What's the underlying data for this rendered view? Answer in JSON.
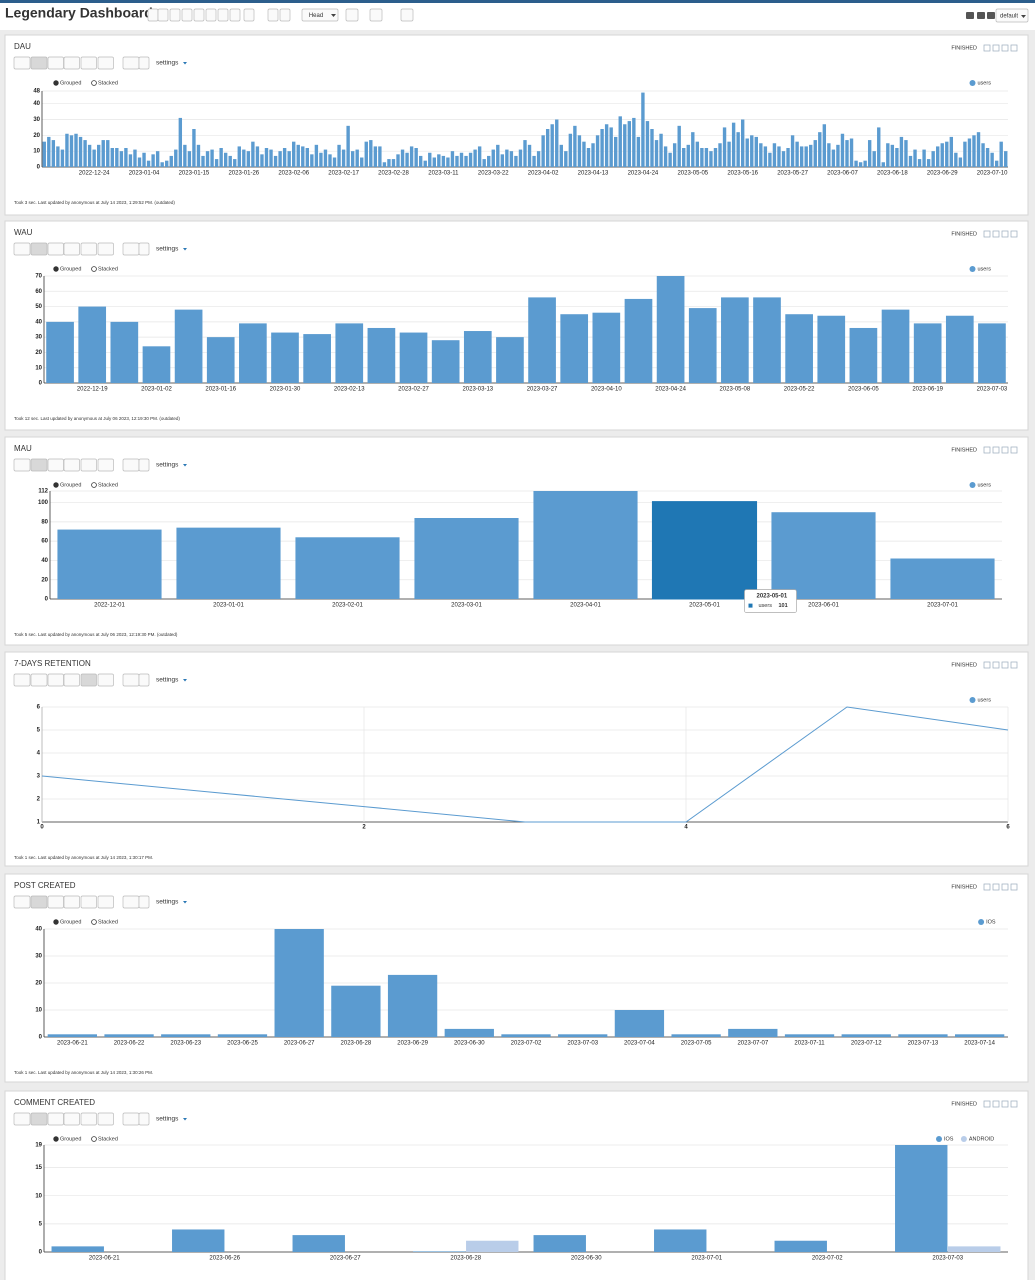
{
  "header": {
    "title": "Legendary Dashboard",
    "branch": "Head",
    "profile": "default"
  },
  "ui": {
    "status": "FINISHED",
    "settings": "settings",
    "grouped": "Grouped",
    "stacked": "Stacked"
  },
  "chart_data": [
    {
      "type": "bar",
      "title": "DAU",
      "footer": "Took 3 sec. Last updated by anonymous at July 14 2023, 1:29:52 PM. (outdated)",
      "categories": [
        null,
        null,
        null,
        null,
        null,
        null,
        null,
        null,
        null,
        null,
        null,
        "2022-12-24",
        null,
        null,
        null,
        null,
        null,
        null,
        null,
        null,
        null,
        null,
        "2023-01-04",
        null,
        null,
        null,
        null,
        null,
        null,
        null,
        null,
        null,
        null,
        "2023-01-15",
        null,
        null,
        null,
        null,
        null,
        null,
        null,
        null,
        null,
        null,
        "2023-01-26",
        null,
        null,
        null,
        null,
        null,
        null,
        null,
        null,
        null,
        null,
        "2023-02-06",
        null,
        null,
        null,
        null,
        null,
        null,
        null,
        null,
        null,
        null,
        "2023-02-17",
        null,
        null,
        null,
        null,
        null,
        null,
        null,
        null,
        null,
        null,
        "2023-02-28",
        null,
        null,
        null,
        null,
        null,
        null,
        null,
        null,
        null,
        null,
        "2023-03-11",
        null,
        null,
        null,
        null,
        null,
        null,
        null,
        null,
        null,
        null,
        "2023-03-22",
        null,
        null,
        null,
        null,
        null,
        null,
        null,
        null,
        null,
        null,
        "2023-04-02",
        null,
        null,
        null,
        null,
        null,
        null,
        null,
        null,
        null,
        null,
        "2023-04-13",
        null,
        null,
        null,
        null,
        null,
        null,
        null,
        null,
        null,
        null,
        "2023-04-24",
        null,
        null,
        null,
        null,
        null,
        null,
        null,
        null,
        null,
        null,
        "2023-05-05",
        null,
        null,
        null,
        null,
        null,
        null,
        null,
        null,
        null,
        null,
        "2023-05-16",
        null,
        null,
        null,
        null,
        null,
        null,
        null,
        null,
        null,
        null,
        "2023-05-27",
        null,
        null,
        null,
        null,
        null,
        null,
        null,
        null,
        null,
        null,
        "2023-06-07",
        null,
        null,
        null,
        null,
        null,
        null,
        null,
        null,
        null,
        null,
        "2023-06-18",
        null,
        null,
        null,
        null,
        null,
        null,
        null,
        null,
        null,
        null,
        "2023-06-29",
        null,
        null,
        null,
        null,
        null,
        null,
        null,
        null,
        null,
        null,
        "2023-07-10",
        null,
        null,
        null
      ],
      "series": [
        {
          "name": "users",
          "color": "#5b9bd0",
          "values": [
            16,
            19,
            17,
            13,
            11,
            21,
            20,
            21,
            19,
            17,
            14,
            11,
            14,
            17,
            17,
            12,
            12,
            10,
            12,
            8,
            11,
            6,
            9,
            4,
            8,
            10,
            3,
            4,
            7,
            11,
            31,
            14,
            10,
            24,
            14,
            7,
            10,
            11,
            5,
            12,
            9,
            7,
            5,
            13,
            11,
            10,
            16,
            13,
            8,
            12,
            11,
            7,
            10,
            12,
            10,
            16,
            14,
            13,
            12,
            8,
            14,
            9,
            11,
            8,
            6,
            14,
            11,
            26,
            10,
            11,
            6,
            16,
            17,
            13,
            13,
            3,
            5,
            5,
            8,
            11,
            9,
            13,
            12,
            7,
            4,
            9,
            6,
            8,
            7,
            6,
            10,
            7,
            9,
            7,
            9,
            11,
            13,
            5,
            7,
            11,
            14,
            8,
            11,
            10,
            7,
            11,
            17,
            14,
            7,
            10,
            20,
            24,
            27,
            30,
            14,
            10,
            21,
            26,
            20,
            16,
            12,
            15,
            20,
            24,
            27,
            25,
            19,
            32,
            27,
            29,
            31,
            19,
            47,
            29,
            24,
            17,
            21,
            13,
            9,
            15,
            26,
            12,
            14,
            22,
            16,
            12,
            12,
            10,
            12,
            15,
            25,
            16,
            28,
            22,
            30,
            18,
            20,
            19,
            15,
            13,
            9,
            15,
            13,
            10,
            12,
            20,
            16,
            13,
            13,
            14,
            17,
            22,
            27,
            15,
            11,
            14,
            21,
            17,
            18,
            4,
            3,
            4,
            17,
            10,
            25,
            3,
            15,
            14,
            12,
            19,
            17,
            7,
            11,
            5,
            11,
            5,
            10,
            13,
            15,
            16,
            19,
            9,
            6,
            16,
            18,
            20,
            22,
            15,
            12,
            9,
            4,
            16,
            10
          ]
        }
      ],
      "ylim": [
        0,
        48
      ],
      "yticks": [
        0,
        10,
        20,
        30,
        40,
        48
      ],
      "grid": true,
      "legend": "top-right"
    },
    {
      "type": "bar",
      "title": "WAU",
      "footer": "Took 12 sec. Last updated by anonymous at July 06 2023, 12:19:30 PM. (outdated)",
      "categories": [
        null,
        "2022-12-19",
        null,
        "2023-01-02",
        null,
        "2023-01-16",
        null,
        "2023-01-30",
        null,
        "2023-02-13",
        null,
        "2023-02-27",
        null,
        "2023-03-13",
        null,
        "2023-03-27",
        null,
        "2023-04-10",
        null,
        "2023-04-24",
        null,
        "2023-05-08",
        null,
        "2023-05-22",
        null,
        "2023-06-05",
        null,
        "2023-06-19",
        null,
        "2023-07-03"
      ],
      "series": [
        {
          "name": "users",
          "color": "#5b9bd0",
          "values": [
            40,
            50,
            40,
            24,
            48,
            30,
            39,
            33,
            32,
            39,
            36,
            33,
            28,
            34,
            30,
            56,
            45,
            46,
            55,
            70,
            49,
            56,
            56,
            45,
            44,
            36,
            48,
            39,
            44,
            39
          ]
        }
      ],
      "ylim": [
        0,
        70
      ],
      "yticks": [
        0,
        10,
        20,
        30,
        40,
        50,
        60,
        70
      ],
      "grid": true,
      "legend": "top-right"
    },
    {
      "type": "bar",
      "title": "MAU",
      "footer": "Took 5 sec. Last updated by anonymous at July 06 2023, 12:19:30 PM. (outdated)",
      "categories": [
        "2022-12-01",
        "2023-01-01",
        "2023-02-01",
        "2023-03-01",
        "2023-04-01",
        "2023-05-01",
        "2023-06-01",
        "2023-07-01"
      ],
      "series": [
        {
          "name": "users",
          "color": "#5b9bd0",
          "values": [
            72,
            74,
            64,
            84,
            112,
            101,
            90,
            42
          ]
        }
      ],
      "highlight": {
        "category": "2023-05-01",
        "color": "#1f77b4"
      },
      "ylim": [
        0,
        112
      ],
      "yticks": [
        0,
        20,
        40,
        60,
        80,
        100,
        112
      ],
      "grid": true,
      "legend": "top-right"
    },
    {
      "type": "line",
      "title": "7-DAYS RETENTION",
      "footer": "Took 1 sec. Last updated by anonymous at July 14 2023, 1:30:17 PM.",
      "x": [
        0,
        1,
        2,
        3,
        4,
        5,
        6
      ],
      "series": [
        {
          "name": "users",
          "color": "#5b9bd0",
          "values": [
            3,
            2.33,
            1.67,
            1,
            1,
            6,
            5
          ]
        }
      ],
      "xlim": [
        0,
        6
      ],
      "xticks": [
        0,
        2,
        4,
        6
      ],
      "ylim": [
        1,
        6
      ],
      "yticks": [
        1,
        2,
        3,
        4,
        5,
        6
      ],
      "grid": true,
      "legend": "top-right"
    },
    {
      "type": "bar",
      "title": "POST CREATED",
      "footer": "Took 1 sec. Last updated by anonymous at July 14 2023, 1:30:26 PM.",
      "categories": [
        "2023-06-21",
        "2023-06-22",
        "2023-06-23",
        "2023-06-25",
        "2023-06-27",
        "2023-06-28",
        "2023-06-29",
        "2023-06-30",
        "2023-07-02",
        "2023-07-03",
        "2023-07-04",
        "2023-07-05",
        "2023-07-07",
        "2023-07-11",
        "2023-07-12",
        "2023-07-13",
        "2023-07-14"
      ],
      "series": [
        {
          "name": "IOS",
          "color": "#5b9bd0",
          "values": [
            1,
            1,
            1,
            1,
            40,
            19,
            23,
            3,
            1,
            1,
            10,
            1,
            3,
            1,
            1,
            1,
            1
          ]
        }
      ],
      "ylim": [
        0,
        40
      ],
      "yticks": [
        0,
        10,
        20,
        30,
        40
      ],
      "grid": true,
      "legend": "top-right"
    },
    {
      "type": "bar",
      "title": "COMMENT CREATED",
      "categories": [
        "2023-06-21",
        "2023-06-26",
        "2023-06-27",
        "2023-06-28",
        "2023-06-30",
        "2023-07-01",
        "2023-07-02",
        "2023-07-03"
      ],
      "series": [
        {
          "name": "IOS",
          "color": "#5b9bd0",
          "values": [
            1,
            4,
            3,
            0,
            3,
            4,
            2,
            19
          ]
        },
        {
          "name": "ANDROID",
          "color": "#b9cde9",
          "values": [
            null,
            null,
            null,
            2,
            null,
            null,
            null,
            1
          ]
        }
      ],
      "ylim": [
        0,
        19
      ],
      "yticks": [
        0,
        5,
        10,
        15,
        19
      ],
      "grid": true,
      "legend": "top-right"
    }
  ]
}
